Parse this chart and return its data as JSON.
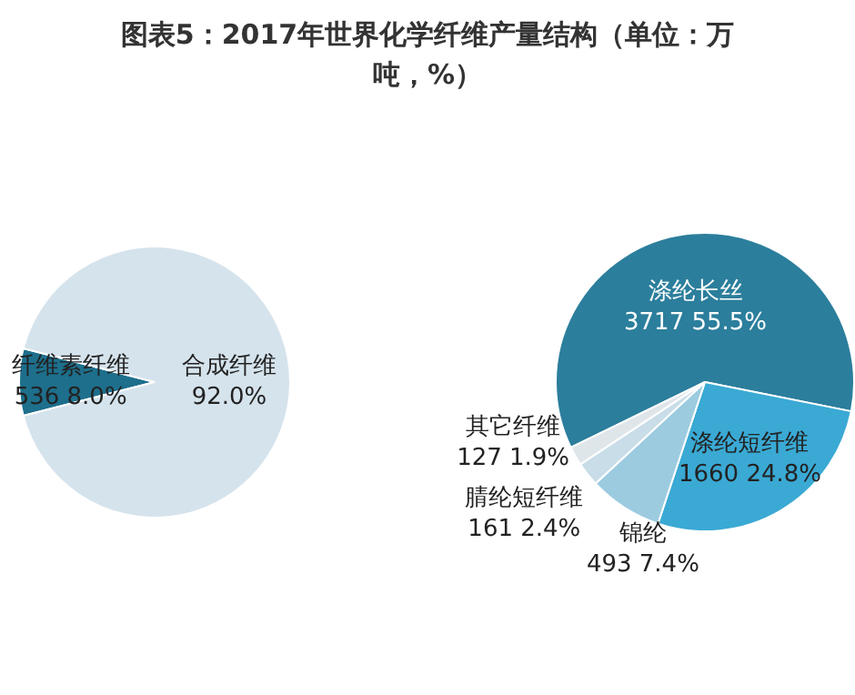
{
  "chart_data": [
    {
      "type": "pie",
      "title": "图表5：2017年世界化学纤维产量结构（单位：万吨，%）",
      "categories": [
        "纤维素纤维",
        "合成纤维"
      ],
      "values": [
        8.0,
        92.0
      ],
      "colors": [
        "#1d6f8c",
        "#d5e3ec"
      ],
      "value_labels": [
        "536 8.0%",
        "92.0%"
      ],
      "legend": false
    },
    {
      "type": "pie",
      "categories": [
        "涤纶长丝",
        "涤纶短纤维",
        "锦纶",
        "腈纶短纤维",
        "其它纤维"
      ],
      "values": [
        3717,
        1660,
        493,
        161,
        127
      ],
      "colors": [
        "#2b7e9c",
        "#3aa9d4",
        "#9ccbe0",
        "#c8dde8",
        "#dfe6ea"
      ],
      "value_labels": [
        "3717 55.5%",
        "1660 24.8%",
        "493 7.4%",
        "161 2.4%",
        "127 1.9%"
      ],
      "legend": false
    }
  ]
}
